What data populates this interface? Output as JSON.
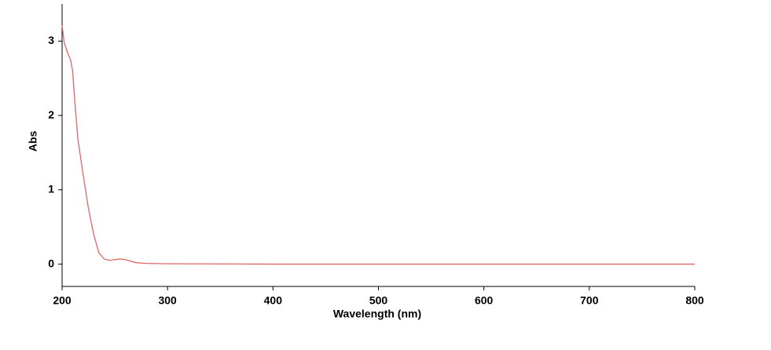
{
  "chart_data": {
    "type": "line",
    "xlabel": "Wavelength (nm)",
    "ylabel": "Abs",
    "x": [
      200,
      202,
      205,
      208,
      210,
      212,
      215,
      220,
      225,
      230,
      235,
      240,
      245,
      250,
      255,
      260,
      265,
      270,
      280,
      300,
      400,
      500,
      600,
      700,
      800
    ],
    "series": [
      {
        "color": "#e06666",
        "values": [
          3.21,
          2.98,
          2.85,
          2.75,
          2.6,
          2.2,
          1.68,
          1.2,
          0.75,
          0.4,
          0.15,
          0.07,
          0.05,
          0.06,
          0.07,
          0.06,
          0.04,
          0.02,
          0.01,
          0.005,
          0,
          0,
          0,
          0,
          0
        ]
      }
    ],
    "xlim": [
      200,
      800
    ],
    "ylim": [
      -0.3,
      3.5
    ],
    "xticks": [
      200,
      300,
      400,
      500,
      600,
      700,
      800
    ],
    "yticks": [
      0,
      1,
      2,
      3
    ]
  }
}
